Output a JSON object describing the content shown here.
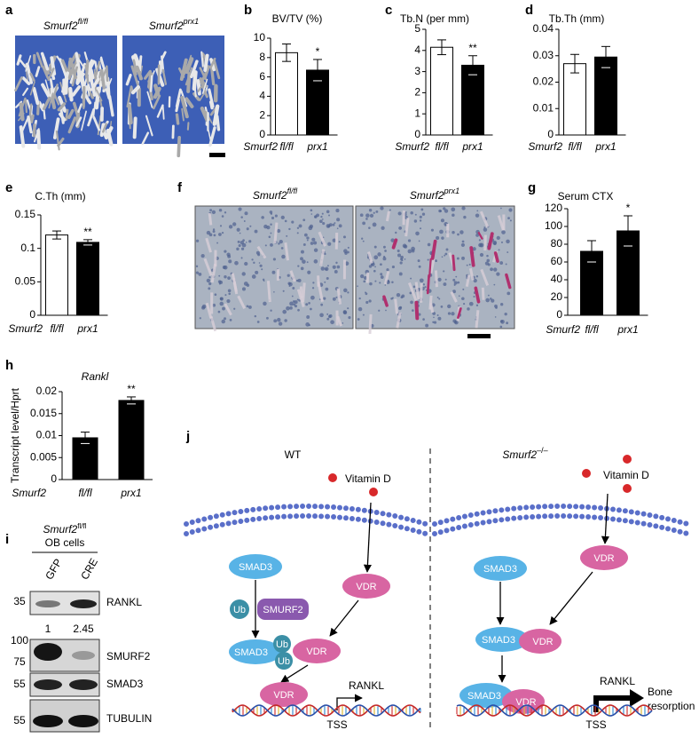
{
  "chart_data": [
    {
      "type": "bar",
      "panel": "b",
      "title": "BV/TV (%)",
      "x_label": "Smurf2",
      "categories": [
        "fl/fl",
        "prx1"
      ],
      "values": [
        8.5,
        6.7
      ],
      "errors": [
        0.9,
        1.1
      ],
      "colors": [
        "#ffffff",
        "#000000"
      ],
      "ylim": [
        0,
        10
      ],
      "yticks": [
        0,
        2,
        4,
        6,
        8,
        10
      ],
      "annotations": [
        {
          "x": "prx1",
          "text": "*"
        }
      ]
    },
    {
      "type": "bar",
      "panel": "c",
      "title": "Tb.N (per mm)",
      "x_label": "Smurf2",
      "categories": [
        "fl/fl",
        "prx1"
      ],
      "values": [
        4.15,
        3.3
      ],
      "errors": [
        0.35,
        0.45
      ],
      "colors": [
        "#ffffff",
        "#000000"
      ],
      "ylim": [
        0,
        5
      ],
      "yticks": [
        0,
        1,
        2,
        3,
        4,
        5
      ],
      "annotations": [
        {
          "x": "prx1",
          "text": "**"
        }
      ]
    },
    {
      "type": "bar",
      "panel": "d",
      "title": "Tb.Th (mm)",
      "x_label": "Smurf2",
      "categories": [
        "fl/fl",
        "prx1"
      ],
      "values": [
        0.027,
        0.0295
      ],
      "errors": [
        0.0035,
        0.004
      ],
      "colors": [
        "#ffffff",
        "#000000"
      ],
      "ylim": [
        0,
        0.04
      ],
      "yticks": [
        0,
        0.01,
        0.02,
        0.03,
        0.04
      ]
    },
    {
      "type": "bar",
      "panel": "e",
      "title": "C.Th (mm)",
      "x_label": "Smurf2",
      "categories": [
        "fl/fl",
        "prx1"
      ],
      "values": [
        0.12,
        0.109
      ],
      "errors": [
        0.006,
        0.004
      ],
      "colors": [
        "#ffffff",
        "#000000"
      ],
      "ylim": [
        0,
        0.15
      ],
      "yticks": [
        0,
        0.05,
        0.1,
        0.15
      ],
      "annotations": [
        {
          "x": "prx1",
          "text": "**"
        }
      ]
    },
    {
      "type": "bar",
      "panel": "g",
      "title": "Serum CTX",
      "x_label": "Smurf2",
      "categories": [
        "fl/fl",
        "prx1"
      ],
      "values": [
        72,
        95
      ],
      "errors": [
        12,
        17
      ],
      "colors": [
        "#000000",
        "#000000"
      ],
      "ylim": [
        0,
        120
      ],
      "yticks": [
        0,
        20,
        40,
        60,
        80,
        100,
        120
      ],
      "annotations": [
        {
          "x": "prx1",
          "text": "*"
        }
      ]
    },
    {
      "type": "bar",
      "panel": "h",
      "title": "Rankl",
      "ylabel": "Transcript level/Hprt",
      "x_label": "Smurf2",
      "categories": [
        "fl/fl",
        "prx1"
      ],
      "values": [
        0.0095,
        0.018
      ],
      "errors": [
        0.0013,
        0.0008
      ],
      "colors": [
        "#000000",
        "#000000"
      ],
      "ylim": [
        0,
        0.02
      ],
      "yticks": [
        0,
        0.005,
        0.01,
        0.015,
        0.02
      ],
      "annotations": [
        {
          "x": "prx1",
          "text": "**"
        }
      ]
    }
  ],
  "panel_a": {
    "letter": "a",
    "images": [
      {
        "gene": "Smurf2",
        "genotype": "fl/fl"
      },
      {
        "gene": "Smurf2",
        "genotype": "prx1"
      }
    ]
  },
  "panel_f": {
    "letter": "f",
    "images": [
      {
        "gene": "Smurf2",
        "genotype": "fl/fl"
      },
      {
        "gene": "Smurf2",
        "genotype": "prx1"
      }
    ]
  },
  "panel_i": {
    "letter": "i",
    "header": {
      "gene": "Smurf2",
      "genotype": "fl/fl",
      "cells": "OB cells"
    },
    "lanes": [
      "GFP",
      "CRE"
    ],
    "blots": [
      {
        "protein": "RANKL",
        "markers": [
          35
        ]
      },
      {
        "protein": "SMURF2",
        "markers": [
          100,
          75
        ]
      },
      {
        "protein": "SMAD3",
        "markers": [
          55
        ]
      },
      {
        "protein": "TUBULIN",
        "markers": [
          55
        ]
      }
    ],
    "quantification": [
      1,
      2.45
    ]
  },
  "panel_j": {
    "letter": "j",
    "left": {
      "title": "WT",
      "ligand": "Vitamin D",
      "smad3": "SMAD3",
      "ub": "Ub",
      "e3": "SMURF2",
      "vdr": "VDR",
      "complex": [
        "SMAD3",
        "Ub",
        "Ub"
      ],
      "vdr2": "VDR",
      "vdr_dna": "VDR",
      "gene": "RANKL",
      "tss": "TSS"
    },
    "right": {
      "gene": "Smurf2",
      "genotype": "–/–",
      "ligand": "Vitamin D",
      "smad3": "SMAD3",
      "vdr": "VDR",
      "complex": [
        "SMAD3",
        "VDR"
      ],
      "dna_complex": [
        "SMAD3",
        "VDR"
      ],
      "gene_label": "RANKL",
      "outcome": [
        "Bone",
        "resorption"
      ],
      "tss": "TSS"
    }
  }
}
